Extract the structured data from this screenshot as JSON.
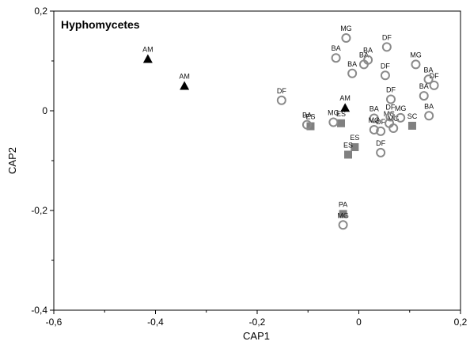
{
  "chart_data": {
    "type": "scatter",
    "title": "Hyphomycetes",
    "xlabel": "CAP1",
    "ylabel": "CAP2",
    "xlim": [
      -0.6,
      0.2
    ],
    "ylim": [
      -0.4,
      0.2
    ],
    "x_ticks": [
      "-0,6",
      "-0,4",
      "-0,2",
      "0",
      "0,2"
    ],
    "y_ticks": [
      "-0,4",
      "-0,2",
      "0",
      "0,2"
    ],
    "grid": false,
    "colors": {
      "circle": "#8a8a8a",
      "square": "#808080",
      "triangle": "#000000"
    },
    "series": [
      {
        "marker": "triangle",
        "points": [
          {
            "x": -0.415,
            "y": 0.104,
            "label": "AM"
          },
          {
            "x": -0.343,
            "y": 0.05,
            "label": "AM"
          },
          {
            "x": -0.027,
            "y": 0.006,
            "label": "AM"
          }
        ]
      },
      {
        "marker": "square",
        "points": [
          {
            "x": -0.095,
            "y": -0.031,
            "label": "ES"
          },
          {
            "x": -0.035,
            "y": -0.025,
            "label": "ES"
          },
          {
            "x": -0.008,
            "y": -0.073,
            "label": "ES"
          },
          {
            "x": -0.021,
            "y": -0.088,
            "label": "ES"
          },
          {
            "x": 0.105,
            "y": -0.03,
            "label": "SC"
          },
          {
            "x": -0.031,
            "y": -0.207,
            "label": "PA"
          }
        ]
      },
      {
        "marker": "circle",
        "points": [
          {
            "x": -0.152,
            "y": 0.021,
            "label": "DF"
          },
          {
            "x": -0.102,
            "y": -0.028,
            "label": "BA"
          },
          {
            "x": -0.05,
            "y": -0.023,
            "label": "MG"
          },
          {
            "x": -0.045,
            "y": 0.106,
            "label": "BA"
          },
          {
            "x": -0.025,
            "y": 0.146,
            "label": "MG"
          },
          {
            "x": -0.013,
            "y": 0.075,
            "label": "BA"
          },
          {
            "x": 0.01,
            "y": 0.093,
            "label": "BA"
          },
          {
            "x": 0.018,
            "y": 0.102,
            "label": "BA"
          },
          {
            "x": 0.055,
            "y": 0.128,
            "label": "DF"
          },
          {
            "x": 0.052,
            "y": 0.071,
            "label": "DF"
          },
          {
            "x": 0.063,
            "y": 0.023,
            "label": "DF"
          },
          {
            "x": 0.112,
            "y": 0.093,
            "label": "MG"
          },
          {
            "x": 0.148,
            "y": 0.051,
            "label": "DF"
          },
          {
            "x": 0.137,
            "y": 0.063,
            "label": "BA"
          },
          {
            "x": 0.128,
            "y": 0.03,
            "label": "BA"
          },
          {
            "x": 0.138,
            "y": -0.01,
            "label": "BA"
          },
          {
            "x": 0.03,
            "y": -0.015,
            "label": "BA"
          },
          {
            "x": 0.03,
            "y": -0.038,
            "label": "MG"
          },
          {
            "x": 0.043,
            "y": -0.041,
            "label": "DF"
          },
          {
            "x": 0.06,
            "y": -0.025,
            "label": "MG"
          },
          {
            "x": 0.068,
            "y": -0.035,
            "label": "MG"
          },
          {
            "x": 0.062,
            "y": -0.012,
            "label": "DF"
          },
          {
            "x": 0.082,
            "y": -0.014,
            "label": "MG"
          },
          {
            "x": 0.043,
            "y": -0.084,
            "label": "DF"
          },
          {
            "x": -0.031,
            "y": -0.229,
            "label": "MG"
          }
        ]
      }
    ]
  }
}
